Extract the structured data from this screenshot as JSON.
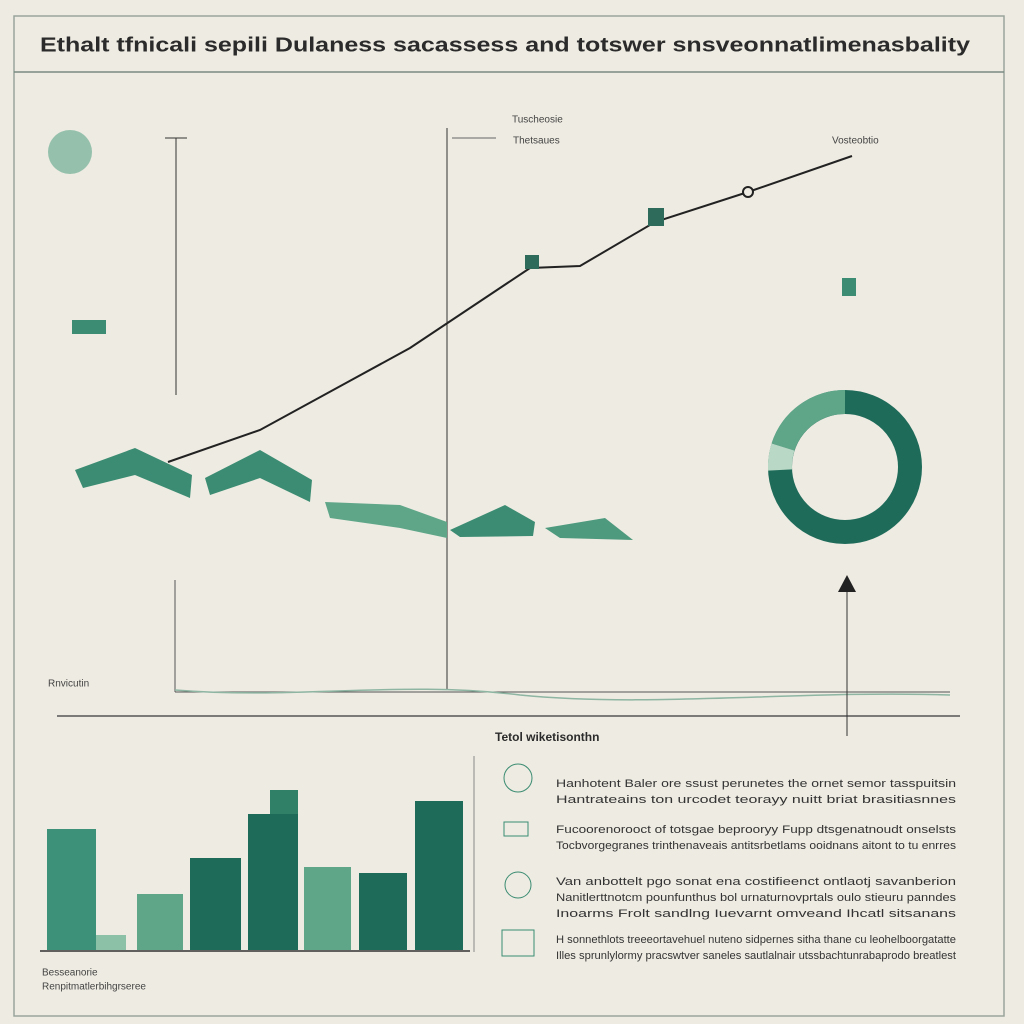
{
  "header": {
    "title": "Ethalt tfnicali sepili Dulaness sacassess and totswer snsveonnatlimenasbality"
  },
  "top_panel": {
    "labels": [
      "Tuscheosie",
      "Thetsaues",
      "Vosteobtio",
      "Rnvicutin"
    ]
  },
  "middle": {
    "label": "Tetol wiketisonthn"
  },
  "bar_panel": {
    "caption": "Besseanorie",
    "subcaption": "Renpitmatlerbihgrseree"
  },
  "list": {
    "items": [
      {
        "lines": [
          "Hanhotent Baler ore ssust perunetes the ornet semor tasspuitsin",
          "Hantrateains ton urcodet teorayy nuitt briat brasitiasnnes"
        ]
      },
      {
        "lines": [
          "Fucoorenorooct of totsgae beprooryy Fupp dtsgenatnoudt onselsts",
          "Tocbvorgegranes trinthenaveais antitsrbetlams ooidnans aitont to tu enrres"
        ]
      },
      {
        "lines": [
          "Van anbottelt pgo sonat ena costifieenct ontlaotj savanberion",
          "Nanitlerttnotcm pounfunthus bol urnaturnovprtals oulo stieuru panndes",
          "Inoarms Frolt sandlng Iuevarnt omveand Ihcatl sitsanans"
        ]
      },
      {
        "lines": [
          "H sonnethlots treeeortavehuel nuteno sidpernes sitha thane cu leohelboorgatatte",
          "Illes sprunlylormy pracswtver saneles sautlalnair utssbachtunrabaprodo breatlest"
        ]
      }
    ]
  }
}
